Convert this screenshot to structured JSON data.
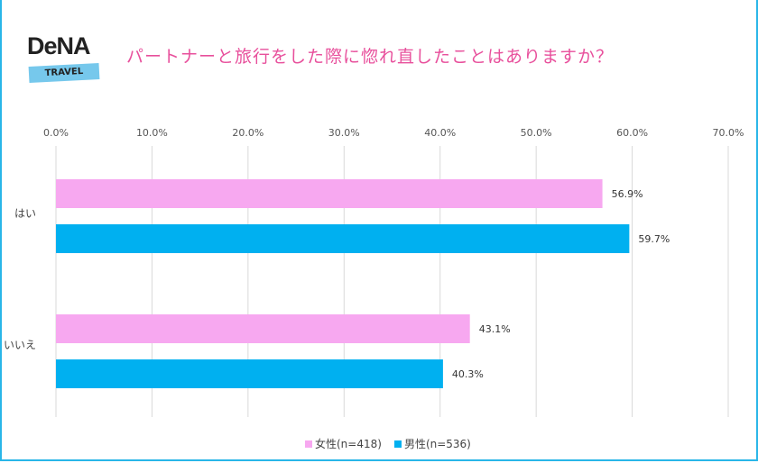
{
  "logo": {
    "brand": "DeNA",
    "sub": "TRAVEL"
  },
  "title": "パートナーと旅行をした際に惚れ直したことはありますか？",
  "chart_data": {
    "type": "bar",
    "orientation": "horizontal",
    "categories": [
      "はい",
      "いいえ"
    ],
    "series": [
      {
        "name": "女性(n=418)",
        "values": [
          56.9,
          43.1
        ],
        "color": "#f7a8f0"
      },
      {
        "name": "男性(n=536)",
        "values": [
          59.7,
          40.3
        ],
        "color": "#00b0f0"
      }
    ],
    "xlim": [
      0,
      70
    ],
    "ticks": [
      "0.0%",
      "10.0%",
      "20.0%",
      "30.0%",
      "40.0%",
      "50.0%",
      "60.0%",
      "70.0%"
    ],
    "data_labels": [
      [
        "56.9%",
        "43.1%"
      ],
      [
        "59.7%",
        "40.3%"
      ]
    ],
    "grid": true,
    "legend": "bottom"
  }
}
